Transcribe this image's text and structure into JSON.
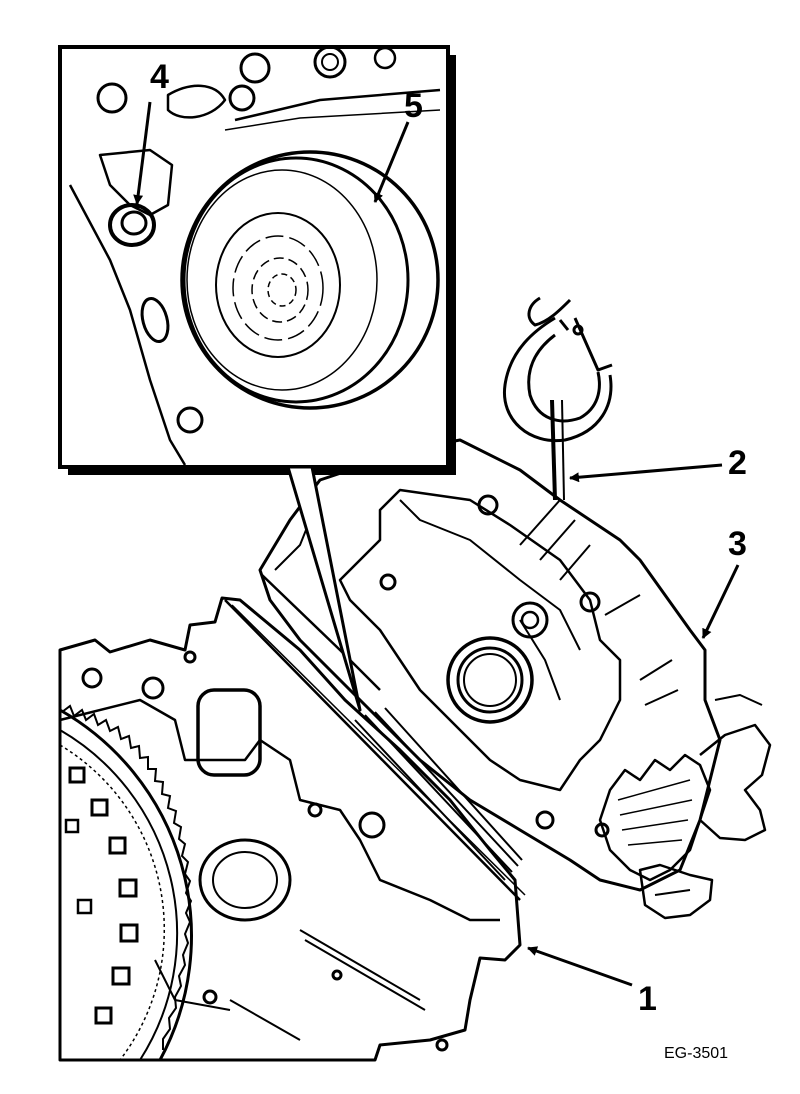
{
  "figure": {
    "id_label": "EG-3501"
  },
  "callouts": [
    {
      "number": "1",
      "part": "engine-block"
    },
    {
      "number": "2",
      "part": "lifting-hook-chain"
    },
    {
      "number": "3",
      "part": "timing-gear-cover"
    },
    {
      "number": "4",
      "part": "dowel-pin"
    },
    {
      "number": "5",
      "part": "crankshaft-front-seal"
    }
  ],
  "colors": {
    "ink": "#000000",
    "paper": "#ffffff"
  }
}
